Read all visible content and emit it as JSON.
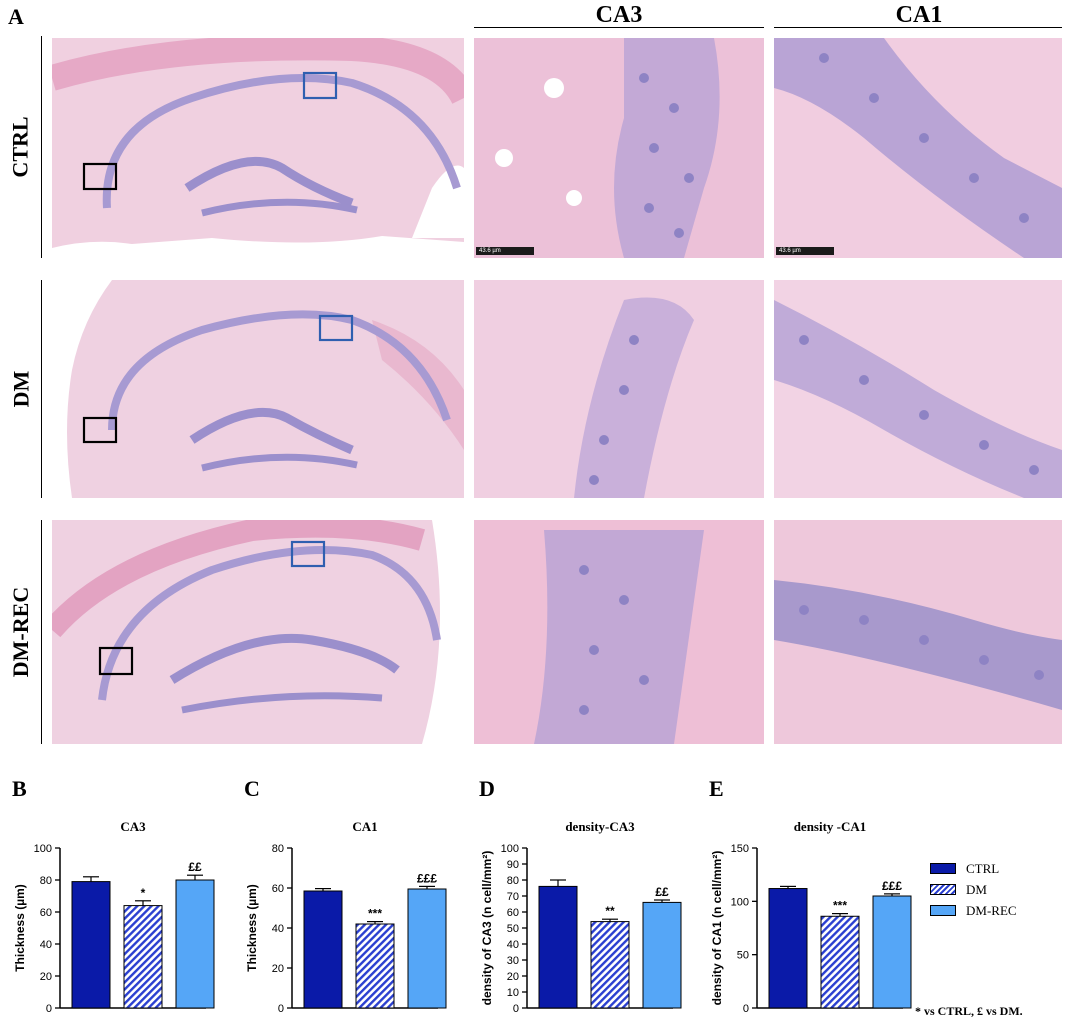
{
  "figure": {
    "panel_a_letter": "A",
    "column_headers": [
      "CA3",
      "CA1"
    ],
    "row_labels": [
      "CTRL",
      "DM",
      "DM-REC"
    ],
    "scale_bar_text": "43.6 µm",
    "footnote": "* vs CTRL, £ vs DM.",
    "colors": {
      "ctrl": "#0a1aa8",
      "dm_hatch": "#2a3fd0",
      "dm_rec": "#55a6f7",
      "he_pink": "#ecc2d8",
      "nuclei_purple": "#8e83c4",
      "roi_black": "#000000",
      "roi_blue": "#2f5fb0"
    }
  },
  "legend": {
    "items": [
      {
        "label": "CTRL",
        "color": "#0a1aa8",
        "pattern": "solid"
      },
      {
        "label": "DM",
        "color": "#2a3fd0",
        "pattern": "hatched"
      },
      {
        "label": "DM-REC",
        "color": "#55a6f7",
        "pattern": "solid"
      }
    ]
  },
  "chart_data": [
    {
      "letter": "B",
      "type": "bar",
      "title": "CA3",
      "ylabel": "Thickness (µm)",
      "categories": [
        "CTRL",
        "DM",
        "DM-REC"
      ],
      "values": [
        79,
        64,
        80
      ],
      "errors": [
        3,
        3,
        3
      ],
      "annotations": [
        "",
        "*",
        "££"
      ],
      "ylim": [
        0,
        100
      ],
      "yticks": [
        0,
        20,
        40,
        60,
        80,
        100
      ]
    },
    {
      "letter": "C",
      "type": "bar",
      "title": "CA1",
      "ylabel": "Thickness (µm)",
      "categories": [
        "CTRL",
        "DM",
        "DM-REC"
      ],
      "values": [
        58.5,
        42,
        59.5
      ],
      "errors": [
        1.2,
        1.2,
        1.3
      ],
      "annotations": [
        "",
        "***",
        "£££"
      ],
      "ylim": [
        0,
        80
      ],
      "yticks": [
        0,
        20,
        40,
        60,
        80
      ]
    },
    {
      "letter": "D",
      "type": "bar",
      "title": "density-CA3",
      "ylabel": "density of CA3 (n cell/mm²)",
      "categories": [
        "CTRL",
        "DM",
        "DM-REC"
      ],
      "values": [
        76,
        54,
        66
      ],
      "errors": [
        4,
        1.5,
        1.5
      ],
      "annotations": [
        "",
        "**",
        "££"
      ],
      "ylim": [
        0,
        100
      ],
      "yticks": [
        0,
        10,
        20,
        30,
        40,
        50,
        60,
        70,
        80,
        90,
        100
      ]
    },
    {
      "letter": "E",
      "type": "bar",
      "title": "density -CA1",
      "ylabel": "density of CA1 (n cell/mm²)",
      "categories": [
        "CTRL",
        "DM",
        "DM-REC"
      ],
      "values": [
        112,
        86,
        105
      ],
      "errors": [
        2,
        2.5,
        2
      ],
      "annotations": [
        "",
        "***",
        "£££"
      ],
      "ylim": [
        0,
        150
      ],
      "yticks": [
        0,
        50,
        100,
        150
      ]
    }
  ]
}
